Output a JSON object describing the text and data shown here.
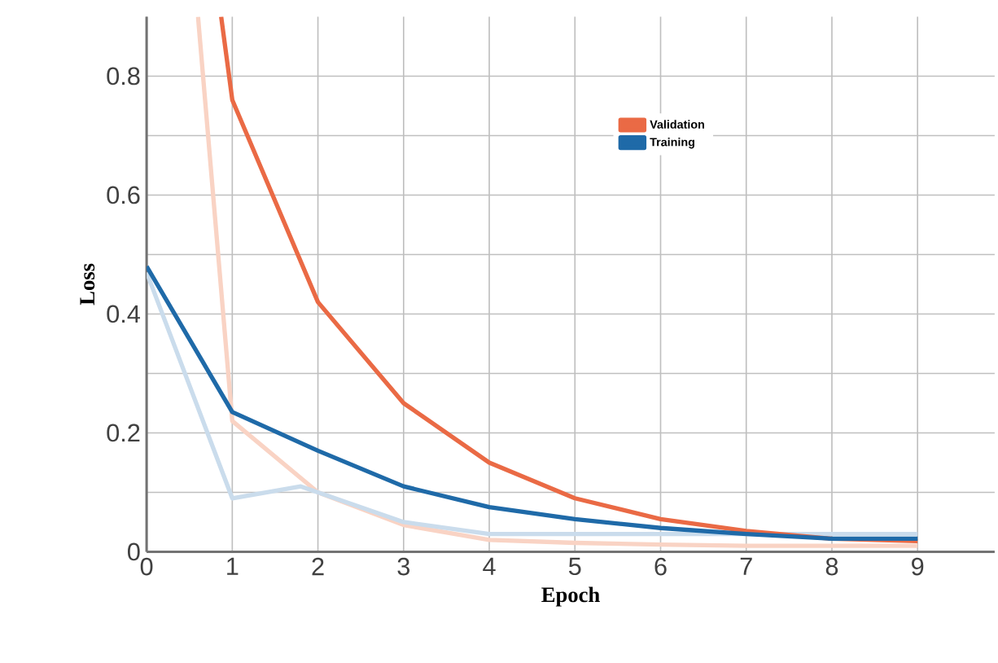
{
  "chart_data": {
    "type": "line",
    "xlabel": "Epoch",
    "ylabel": "Loss",
    "xlim": [
      0,
      9.9
    ],
    "ylim": [
      0,
      0.9
    ],
    "xticks": [
      0,
      1,
      2,
      3,
      4,
      5,
      6,
      7,
      8,
      9
    ],
    "yticks": [
      0,
      {
        "value": 0.1,
        "label": null
      },
      0.2,
      {
        "value": 0.3,
        "label": null
      },
      0.4,
      {
        "value": 0.5,
        "label": null
      },
      0.6,
      {
        "value": 0.7,
        "label": null
      },
      0.8
    ],
    "grid": true,
    "legend": "top right",
    "marker": "none",
    "line_style": "solid",
    "series": [
      {
        "color": "#f9d3c4",
        "x": [
          0.6,
          1,
          2,
          3,
          4,
          5,
          6,
          7,
          8,
          9
        ],
        "values": [
          0.9,
          0.22,
          0.1,
          0.045,
          0.02,
          0.015,
          0.012,
          0.01,
          0.01,
          0.01
        ]
      },
      {
        "color": "#cadcec",
        "x": [
          0,
          1,
          1.8,
          2,
          3,
          4,
          5,
          6,
          7,
          8,
          9
        ],
        "values": [
          0.47,
          0.09,
          0.11,
          0.1,
          0.05,
          0.03,
          0.03,
          0.03,
          0.03,
          0.03,
          0.03
        ]
      },
      {
        "name": "Validation",
        "color": "#ea6a45",
        "x": [
          0.87,
          1,
          2,
          3,
          4,
          5,
          6,
          7,
          8,
          9
        ],
        "values": [
          0.9,
          0.76,
          0.42,
          0.25,
          0.15,
          0.09,
          0.055,
          0.035,
          0.022,
          0.018
        ]
      },
      {
        "name": "Training",
        "color": "#1f6aa8",
        "x": [
          0,
          1,
          2,
          3,
          4,
          5,
          6,
          7,
          8,
          9
        ],
        "values": [
          0.48,
          0.235,
          0.17,
          0.11,
          0.075,
          0.055,
          0.04,
          0.03,
          0.022,
          0.022
        ]
      }
    ]
  }
}
